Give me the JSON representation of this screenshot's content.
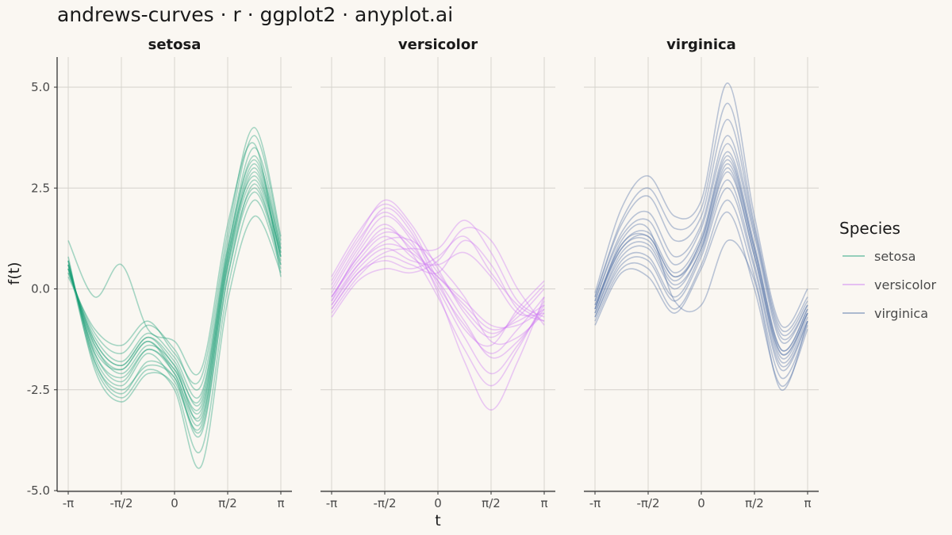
{
  "chart_data": {
    "type": "line",
    "title": "andrews-curves · r · ggplot2 · anyplot.ai",
    "xlabel": "t",
    "ylabel": "f(t)",
    "x_range": [
      -3.14159,
      3.14159
    ],
    "ylim": [
      -5.0,
      5.5
    ],
    "x_ticks": [
      {
        "value": -3.14159,
        "label": "-π"
      },
      {
        "value": -1.5708,
        "label": "-π/2"
      },
      {
        "value": 0,
        "label": "0"
      },
      {
        "value": 1.5708,
        "label": "π/2"
      },
      {
        "value": 3.14159,
        "label": "π"
      }
    ],
    "y_ticks": [
      {
        "value": 5.0,
        "label": "5.0"
      },
      {
        "value": 2.5,
        "label": "2.5"
      },
      {
        "value": 0.0,
        "label": "0.0"
      },
      {
        "value": -2.5,
        "label": "-2.5"
      },
      {
        "value": -5.0,
        "label": "-5.0"
      }
    ],
    "grid": true,
    "legend": {
      "title": "Species",
      "placement": "right"
    },
    "facets": [
      {
        "name": "setosa",
        "color": "#1A9E77",
        "series_x": [
          -3.14159,
          -2.35619,
          -1.5708,
          -0.7854,
          0,
          0.7854,
          1.5708,
          2.35619,
          3.14159
        ],
        "curves": [
          [
            0.6,
            -1.6,
            -2.2,
            -1.5,
            -2.0,
            -3.0,
            0.7,
            3.0,
            0.8
          ],
          [
            0.5,
            -1.3,
            -1.9,
            -1.2,
            -1.8,
            -2.8,
            0.9,
            3.3,
            1.0
          ],
          [
            0.7,
            -1.8,
            -2.5,
            -1.9,
            -2.2,
            -3.5,
            0.3,
            2.6,
            0.6
          ],
          [
            0.4,
            -1.1,
            -1.6,
            -0.9,
            -1.5,
            -2.4,
            1.2,
            3.8,
            1.2
          ],
          [
            0.8,
            -2.0,
            -2.8,
            -2.1,
            -2.4,
            -4.0,
            0.0,
            2.2,
            0.5
          ],
          [
            0.6,
            -1.5,
            -2.0,
            -1.3,
            -2.1,
            -3.1,
            0.8,
            2.8,
            0.9
          ],
          [
            0.3,
            -1.0,
            -1.4,
            -0.8,
            -1.6,
            -2.2,
            1.4,
            4.0,
            1.3
          ],
          [
            0.5,
            -1.4,
            -2.1,
            -1.4,
            -1.9,
            -3.2,
            0.6,
            2.9,
            0.8
          ],
          [
            0.7,
            -1.7,
            -2.4,
            -1.6,
            -2.3,
            -3.4,
            0.5,
            2.5,
            0.7
          ],
          [
            0.4,
            -1.2,
            -1.8,
            -1.1,
            -1.7,
            -2.6,
            1.0,
            3.5,
            1.1
          ],
          [
            0.6,
            -1.9,
            -2.7,
            -2.0,
            -2.5,
            -4.4,
            -0.3,
            1.8,
            0.4
          ],
          [
            0.5,
            -1.4,
            -2.0,
            -1.3,
            -2.0,
            -2.9,
            0.8,
            3.1,
            0.9
          ],
          [
            1.2,
            -0.2,
            0.6,
            -1.0,
            -1.3,
            -2.0,
            1.6,
            3.6,
            0.3
          ],
          [
            0.6,
            -1.6,
            -2.3,
            -1.5,
            -2.1,
            -3.3,
            0.6,
            2.7,
            0.8
          ],
          [
            0.5,
            -1.3,
            -1.9,
            -1.2,
            -1.9,
            -2.7,
            1.0,
            3.2,
            1.0
          ],
          [
            0.7,
            -1.8,
            -2.6,
            -1.8,
            -2.2,
            -3.6,
            0.3,
            2.4,
            0.6
          ]
        ]
      },
      {
        "name": "versicolor",
        "color": "#CC79F2",
        "series_x": [
          -3.14159,
          -2.35619,
          -1.5708,
          -0.7854,
          0,
          0.7854,
          1.5708,
          2.35619,
          3.14159
        ],
        "curves": [
          [
            -0.2,
            0.8,
            1.5,
            1.0,
            0.3,
            -0.4,
            -1.0,
            -0.8,
            -0.4
          ],
          [
            -0.4,
            0.6,
            1.2,
            1.2,
            0.6,
            -0.2,
            -1.3,
            -1.2,
            -0.6
          ],
          [
            0.0,
            1.1,
            2.0,
            1.4,
            0.1,
            -0.9,
            -1.6,
            -1.0,
            -0.2
          ],
          [
            -0.6,
            0.3,
            0.8,
            0.6,
            0.4,
            1.2,
            0.6,
            -0.5,
            -0.8
          ],
          [
            -0.3,
            0.9,
            1.6,
            0.9,
            -0.2,
            -1.5,
            -2.4,
            -1.5,
            -0.3
          ],
          [
            0.2,
            1.3,
            2.2,
            1.6,
            0.5,
            -0.6,
            -1.2,
            -0.6,
            0.1
          ],
          [
            -0.5,
            0.4,
            0.9,
            1.0,
            1.0,
            1.7,
            0.9,
            -0.3,
            -0.7
          ],
          [
            -0.2,
            0.7,
            1.3,
            0.8,
            0.2,
            -0.8,
            -1.7,
            -1.3,
            -0.5
          ],
          [
            -0.1,
            1.0,
            1.8,
            1.2,
            -0.1,
            -1.8,
            -3.0,
            -1.8,
            -0.2
          ],
          [
            -0.4,
            0.5,
            1.0,
            0.7,
            0.6,
            0.9,
            0.3,
            -0.6,
            -0.6
          ],
          [
            0.1,
            1.2,
            1.9,
            1.3,
            0.4,
            -0.5,
            -1.1,
            -0.7,
            0.0
          ],
          [
            -0.3,
            0.6,
            1.1,
            0.9,
            0.3,
            -0.3,
            -0.9,
            -0.9,
            -0.5
          ],
          [
            -0.7,
            0.2,
            0.5,
            0.4,
            0.7,
            1.5,
            1.2,
            0.0,
            -0.9
          ],
          [
            -0.2,
            0.8,
            1.4,
            1.1,
            0.0,
            -1.2,
            -2.1,
            -1.4,
            -0.4
          ],
          [
            0.3,
            1.4,
            2.1,
            1.5,
            0.2,
            -1.0,
            -1.4,
            -0.5,
            0.2
          ],
          [
            -0.5,
            0.4,
            0.7,
            0.5,
            0.8,
            1.3,
            0.4,
            -0.4,
            -0.8
          ]
        ]
      },
      {
        "name": "virginica",
        "color": "#4E6FA5",
        "series_x": [
          -3.14159,
          -2.35619,
          -1.5708,
          -0.7854,
          0,
          0.7854,
          1.5708,
          2.35619,
          3.14159
        ],
        "curves": [
          [
            -0.5,
            1.0,
            1.2,
            0.2,
            1.2,
            3.2,
            1.0,
            -1.6,
            -0.6
          ],
          [
            -0.3,
            1.3,
            1.7,
            0.6,
            1.5,
            3.6,
            1.3,
            -1.3,
            -0.4
          ],
          [
            -0.7,
            0.7,
            0.8,
            -0.2,
            0.9,
            2.7,
            0.6,
            -1.9,
            -0.8
          ],
          [
            -0.2,
            1.6,
            2.3,
            1.2,
            1.8,
            4.2,
            1.5,
            -1.1,
            -0.3
          ],
          [
            -0.8,
            0.5,
            0.5,
            -0.5,
            0.6,
            2.2,
            0.3,
            -2.2,
            -0.9
          ],
          [
            -0.4,
            1.1,
            1.4,
            0.4,
            1.3,
            3.4,
            1.1,
            -1.5,
            -0.5
          ],
          [
            -0.1,
            2.0,
            2.8,
            1.8,
            2.2,
            5.1,
            1.8,
            -0.9,
            0.0
          ],
          [
            -0.6,
            0.8,
            1.0,
            0.0,
            1.0,
            2.9,
            0.8,
            -1.8,
            -0.7
          ],
          [
            -0.5,
            1.2,
            1.5,
            -0.3,
            -0.4,
            1.2,
            0.2,
            -2.5,
            -0.8
          ],
          [
            -0.3,
            1.4,
            1.9,
            0.8,
            1.6,
            3.8,
            1.4,
            -1.2,
            -0.4
          ],
          [
            -0.9,
            0.4,
            0.3,
            -0.6,
            0.5,
            1.9,
            0.0,
            -2.4,
            -1.0
          ],
          [
            -0.4,
            1.0,
            1.3,
            0.3,
            1.1,
            3.1,
            0.9,
            -1.7,
            -0.6
          ],
          [
            -0.2,
            1.7,
            2.5,
            1.5,
            2.0,
            4.6,
            1.6,
            -1.0,
            -0.2
          ],
          [
            -0.6,
            0.9,
            1.1,
            0.1,
            1.0,
            3.0,
            0.8,
            -1.6,
            -0.6
          ],
          [
            -0.5,
            1.1,
            1.3,
            0.3,
            1.2,
            3.3,
            1.0,
            -1.5,
            -0.5
          ],
          [
            -0.7,
            0.6,
            0.7,
            -0.3,
            0.8,
            2.5,
            0.5,
            -2.0,
            -0.8
          ]
        ]
      }
    ]
  }
}
